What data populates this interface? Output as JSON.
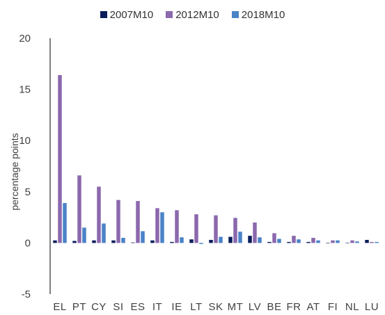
{
  "chart_data": {
    "type": "bar",
    "title": "",
    "xlabel": "",
    "ylabel": "percentage points",
    "ylim": [
      -5,
      20
    ],
    "yticks": [
      -5,
      0,
      5,
      10,
      15,
      20
    ],
    "grid": false,
    "legend_position": "top",
    "categories": [
      "EL",
      "PT",
      "CY",
      "SI",
      "ES",
      "IT",
      "IE",
      "LT",
      "SK",
      "MT",
      "LV",
      "BE",
      "FR",
      "AT",
      "FI",
      "NL",
      "LU"
    ],
    "series": [
      {
        "name": "2007M10",
        "color": "#0a1e5a",
        "values": [
          0.25,
          0.2,
          0.25,
          0.25,
          0.05,
          0.25,
          0.1,
          0.35,
          0.3,
          0.6,
          0.7,
          0.1,
          0.1,
          0.1,
          0.0,
          0.0,
          0.3
        ]
      },
      {
        "name": "2012M10",
        "color": "#8b68ad",
        "values": [
          16.4,
          6.6,
          5.5,
          4.2,
          4.1,
          3.4,
          3.2,
          2.8,
          2.7,
          2.45,
          2.0,
          0.95,
          0.7,
          0.5,
          0.25,
          0.25,
          0.1
        ]
      },
      {
        "name": "2018M10",
        "color": "#4a82c7",
        "values": [
          3.9,
          1.5,
          1.9,
          0.5,
          1.15,
          3.0,
          0.55,
          -0.1,
          0.6,
          1.1,
          0.55,
          0.4,
          0.35,
          0.25,
          0.25,
          0.15,
          0.1
        ]
      }
    ]
  }
}
